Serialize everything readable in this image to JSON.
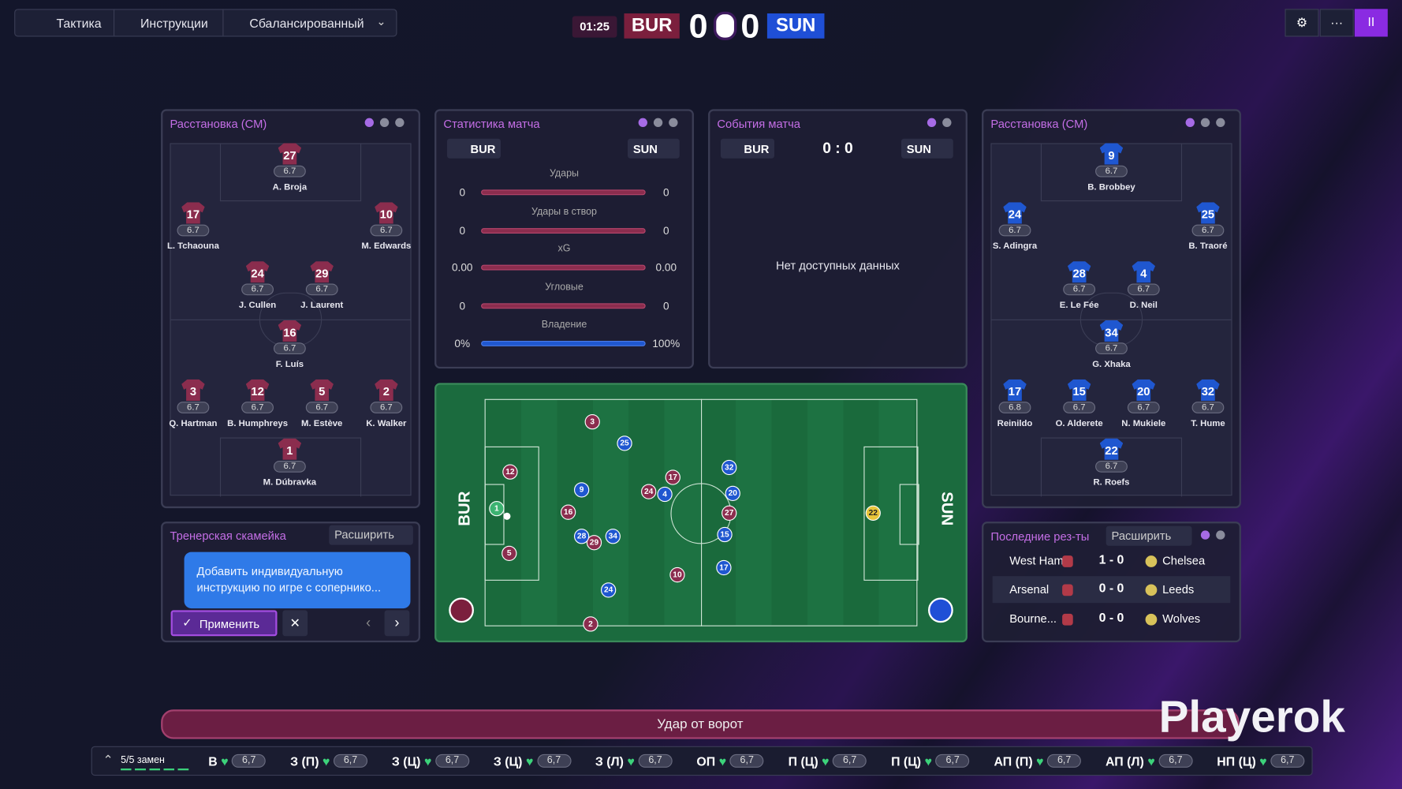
{
  "top_bar": {
    "tabs": [
      "Тактика",
      "Инструкции",
      "Сбалансированный"
    ],
    "clock": "01:25",
    "home": "BUR",
    "home_score": 0,
    "away_score": 0,
    "away": "SUN"
  },
  "home_lineup": {
    "title": "Расстановка (СМ)",
    "players": [
      {
        "number": 27,
        "rating": 6.7,
        "name": "A. Broja"
      },
      {
        "number": 17,
        "rating": 6.7,
        "name": "L. Tchaouna"
      },
      {
        "number": 10,
        "rating": 6.7,
        "name": "M. Edwards"
      },
      {
        "number": 24,
        "rating": 6.7,
        "name": "J. Cullen"
      },
      {
        "number": 29,
        "rating": 6.7,
        "name": "J. Laurent"
      },
      {
        "number": 16,
        "rating": 6.7,
        "name": "F. Luís"
      },
      {
        "number": 3,
        "rating": 6.7,
        "name": "Q. Hartman"
      },
      {
        "number": 12,
        "rating": 6.7,
        "name": "B. Humphreys"
      },
      {
        "number": 5,
        "rating": 6.7,
        "name": "M. Estève"
      },
      {
        "number": 2,
        "rating": 6.7,
        "name": "K. Walker"
      },
      {
        "number": 1,
        "rating": 6.7,
        "name": "M. Dúbravka"
      }
    ]
  },
  "away_lineup": {
    "title": "Расстановка (СМ)",
    "players": [
      {
        "number": 9,
        "rating": 6.7,
        "name": "B. Brobbey"
      },
      {
        "number": 24,
        "rating": 6.7,
        "name": "S. Adingra"
      },
      {
        "number": 25,
        "rating": 6.7,
        "name": "B. Traoré"
      },
      {
        "number": 28,
        "rating": 6.7,
        "name": "E. Le Fée"
      },
      {
        "number": 4,
        "rating": 6.7,
        "name": "D. Neil"
      },
      {
        "number": 34,
        "rating": 6.7,
        "name": "G. Xhaka"
      },
      {
        "number": 17,
        "rating": 6.8,
        "name": "Reinildo"
      },
      {
        "number": 15,
        "rating": 6.7,
        "name": "O. Alderete"
      },
      {
        "number": 20,
        "rating": 6.7,
        "name": "N. Mukiele"
      },
      {
        "number": 32,
        "rating": 6.7,
        "name": "T. Hume"
      },
      {
        "number": 22,
        "rating": 6.7,
        "name": "R. Roefs"
      }
    ]
  },
  "match_stats": {
    "title": "Статистика матча",
    "home": "BUR",
    "away": "SUN",
    "rows": [
      {
        "label": "Удары",
        "home": "0",
        "away": "0"
      },
      {
        "label": "Удары в створ",
        "home": "0",
        "away": "0"
      },
      {
        "label": "xG",
        "home": "0.00",
        "away": "0.00"
      },
      {
        "label": "Угловые",
        "home": "0",
        "away": "0"
      },
      {
        "label": "Владение",
        "home": "0%",
        "away": "100%"
      }
    ]
  },
  "match_events": {
    "title": "События матча",
    "home": "BUR",
    "score": "0 : 0",
    "away": "SUN",
    "empty": "Нет доступных данных"
  },
  "pitch": {
    "home": "BUR",
    "away": "SUN",
    "home_players": [
      3,
      12,
      5,
      16,
      24,
      17,
      29,
      27,
      10,
      2
    ],
    "home_keeper": 1,
    "away_players": [
      25,
      9,
      28,
      34,
      24,
      32,
      20,
      4,
      15,
      17
    ],
    "away_keeper": 22
  },
  "bench": {
    "title": "Тренерская скамейка",
    "expand": "Расширить",
    "message": "Добавить индивидуальную инструкцию по игре с сопернико...",
    "apply": "Применить"
  },
  "results": {
    "title": "Последние рез-ты",
    "expand": "Расширить",
    "rows": [
      {
        "home": "West Ham",
        "score": "1 - 0",
        "away": "Chelsea"
      },
      {
        "home": "Arsenal",
        "score": "0 - 0",
        "away": "Leeds"
      },
      {
        "home": "Bourne...",
        "score": "0 - 0",
        "away": "Wolves"
      }
    ]
  },
  "event_bar": "Удар от ворот",
  "watermark": "Playerok",
  "bottom_bar": {
    "subs": "5/5 замен",
    "slots": [
      {
        "position": "В",
        "rating": "6,7"
      },
      {
        "position": "З (П)",
        "rating": "6,7"
      },
      {
        "position": "З (Ц)",
        "rating": "6,7"
      },
      {
        "position": "З (Ц)",
        "rating": "6,7"
      },
      {
        "position": "З (Л)",
        "rating": "6,7"
      },
      {
        "position": "ОП",
        "rating": "6,7"
      },
      {
        "position": "П (Ц)",
        "rating": "6,7"
      },
      {
        "position": "П (Ц)",
        "rating": "6,7"
      },
      {
        "position": "АП (П)",
        "rating": "6,7"
      },
      {
        "position": "АП (Л)",
        "rating": "6,7"
      },
      {
        "position": "НП (Ц)",
        "rating": "6,7"
      }
    ]
  }
}
